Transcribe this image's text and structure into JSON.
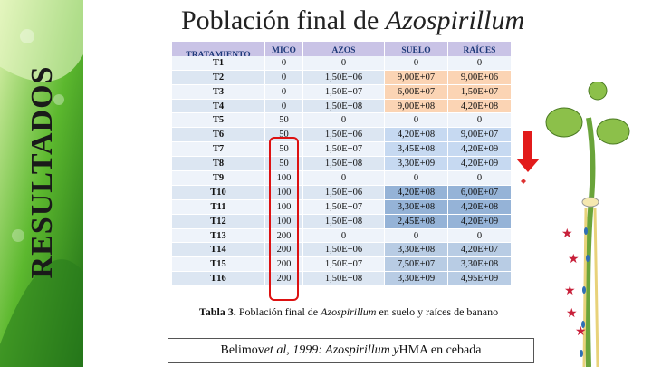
{
  "side_label": "RESULTADOS",
  "title": [
    "Población final de ",
    "Azospirillum"
  ],
  "table": {
    "header": [
      "TRATAMIENTO",
      "MICO\n(g)",
      "AZOS\n(UFC/ml)",
      "SUELO\n(UFC/g)",
      "RAÍCES\n(UFC/g)"
    ],
    "rows": [
      [
        "T1",
        "0",
        "0",
        "0",
        "0"
      ],
      [
        "T2",
        "0",
        "1,50E+06",
        "9,00E+07",
        "9,00E+06"
      ],
      [
        "T3",
        "0",
        "1,50E+07",
        "6,00E+07",
        "1,50E+07"
      ],
      [
        "T4",
        "0",
        "1,50E+08",
        "9,00E+08",
        "4,20E+08"
      ],
      [
        "T5",
        "50",
        "0",
        "0",
        "0"
      ],
      [
        "T6",
        "50",
        "1,50E+06",
        "4,20E+08",
        "9,00E+07"
      ],
      [
        "T7",
        "50",
        "1,50E+07",
        "3,45E+08",
        "4,20E+09"
      ],
      [
        "T8",
        "50",
        "1,50E+08",
        "3,30E+09",
        "4,20E+09"
      ],
      [
        "T9",
        "100",
        "0",
        "0",
        "0"
      ],
      [
        "T10",
        "100",
        "1,50E+06",
        "4,20E+08",
        "6,00E+07"
      ],
      [
        "T11",
        "100",
        "1,50E+07",
        "3,30E+08",
        "4,20E+08"
      ],
      [
        "T12",
        "100",
        "1,50E+08",
        "2,45E+08",
        "4,20E+09"
      ],
      [
        "T13",
        "200",
        "0",
        "0",
        "0"
      ],
      [
        "T14",
        "200",
        "1,50E+06",
        "3,30E+08",
        "4,20E+07"
      ],
      [
        "T15",
        "200",
        "1,50E+07",
        "7,50E+07",
        "3,30E+08"
      ],
      [
        "T16",
        "200",
        "1,50E+08",
        "3,30E+09",
        "4,95E+09"
      ]
    ]
  },
  "caption": [
    "Tabla 3.",
    " Población final de ",
    "Azospirillum",
    " en suelo y raíces de banano"
  ],
  "citation": [
    "Belimov ",
    "et al, 1999: Azospirillum y",
    " HMA en cebada"
  ]
}
